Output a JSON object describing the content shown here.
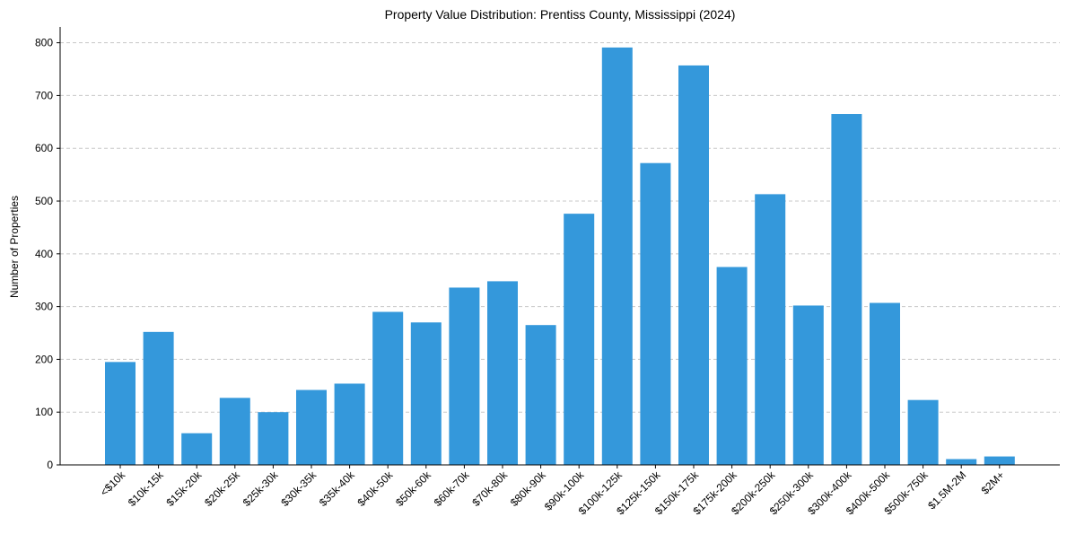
{
  "chart_data": {
    "type": "bar",
    "title": "Property Value Distribution: Prentiss County, Mississippi (2024)",
    "xlabel": "",
    "ylabel": "Number of Properties",
    "categories": [
      "<$10k",
      "$10k-15k",
      "$15k-20k",
      "$20k-25k",
      "$25k-30k",
      "$30k-35k",
      "$35k-40k",
      "$40k-50k",
      "$50k-60k",
      "$60k-70k",
      "$70k-80k",
      "$80k-90k",
      "$90k-100k",
      "$100k-125k",
      "$125k-150k",
      "$150k-175k",
      "$175k-200k",
      "$200k-250k",
      "$250k-300k",
      "$300k-400k",
      "$400k-500k",
      "$500k-750k",
      "$1.5M-2M",
      "$2M+"
    ],
    "values": [
      195,
      252,
      60,
      127,
      100,
      142,
      154,
      290,
      270,
      336,
      348,
      265,
      476,
      791,
      572,
      757,
      375,
      513,
      302,
      665,
      307,
      123,
      11,
      16
    ],
    "ylim": [
      0,
      830
    ],
    "yticks": [
      0,
      100,
      200,
      300,
      400,
      500,
      600,
      700,
      800
    ],
    "grid": "y-dashed",
    "colors": {
      "bar": "#3498db",
      "grid": "#c8c8c8",
      "axis": "#000000"
    }
  }
}
